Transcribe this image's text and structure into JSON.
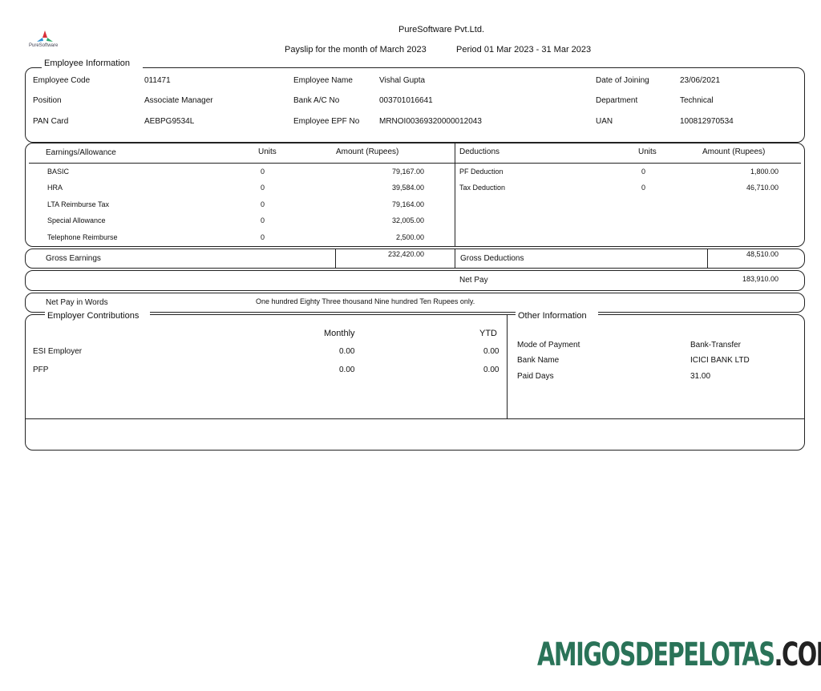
{
  "header": {
    "logo_text": "PureSoftware",
    "company": "PureSoftware Pvt.Ltd.",
    "payslip_label": "Payslip for the month of  March 2023",
    "period": "Period  01 Mar 2023 - 31 Mar 2023"
  },
  "employee_info": {
    "title": "Employee Information",
    "fields": [
      {
        "label": "Employee Code",
        "value": "011471"
      },
      {
        "label": "Employee Name",
        "value": "Vishal Gupta"
      },
      {
        "label": "Date of Joining",
        "value": "23/06/2021"
      },
      {
        "label": "Position",
        "value": "Associate Manager"
      },
      {
        "label": "Bank A/C No",
        "value": "003701016641"
      },
      {
        "label": "Department",
        "value": "Technical"
      },
      {
        "label": "PAN Card",
        "value": "AEBPG9534L"
      },
      {
        "label": "Employee EPF No",
        "value": "MRNOI00369320000012043"
      },
      {
        "label": "UAN",
        "value": "100812970534"
      }
    ]
  },
  "earnings": {
    "header": "Earnings/Allowance",
    "units_header": "Units",
    "amount_header": "Amount  (Rupees)",
    "rows": [
      {
        "name": "BASIC",
        "units": "0",
        "amount": "79,167.00"
      },
      {
        "name": "HRA",
        "units": "0",
        "amount": "39,584.00"
      },
      {
        "name": "LTA Reimburse Tax",
        "units": "0",
        "amount": "79,164.00"
      },
      {
        "name": "Special Allowance",
        "units": "0",
        "amount": "32,005.00"
      },
      {
        "name": "Telephone Reimburse",
        "units": "0",
        "amount": "2,500.00"
      }
    ],
    "gross_label": "Gross Earnings",
    "gross_value": "232,420.00"
  },
  "deductions": {
    "header": "Deductions",
    "units_header": "Units",
    "amount_header": "Amount  (Rupees)",
    "rows": [
      {
        "name": "PF Deduction",
        "units": "0",
        "amount": "1,800.00"
      },
      {
        "name": "Tax Deduction",
        "units": "0",
        "amount": "46,710.00"
      }
    ],
    "gross_label": "Gross Deductions",
    "gross_value": "48,510.00"
  },
  "net_pay": {
    "label": "Net Pay",
    "value": "183,910.00",
    "words_label": "Net Pay in Words",
    "words": "One hundred  Eighty  Three  thousand  Nine hundred  Ten Rupees  only."
  },
  "employer_contributions": {
    "title": "Employer Contributions",
    "monthly_header": "Monthly",
    "ytd_header": "YTD",
    "rows": [
      {
        "name": "ESI Employer",
        "monthly": "0.00",
        "ytd": "0.00"
      },
      {
        "name": "PFP",
        "monthly": "0.00",
        "ytd": "0.00"
      }
    ]
  },
  "other_info": {
    "title": "Other Information",
    "rows": [
      {
        "label": "Mode of Payment",
        "value": "Bank-Transfer"
      },
      {
        "label": "Bank Name",
        "value": "ICICI BANK LTD"
      },
      {
        "label": "Paid Days",
        "value": "31.00"
      }
    ]
  },
  "watermark": {
    "text_green": "AMIGOSDEPELOTAS",
    "text_dark": ".COM",
    "color_green": "#2a7358",
    "color_dark": "#222222"
  }
}
